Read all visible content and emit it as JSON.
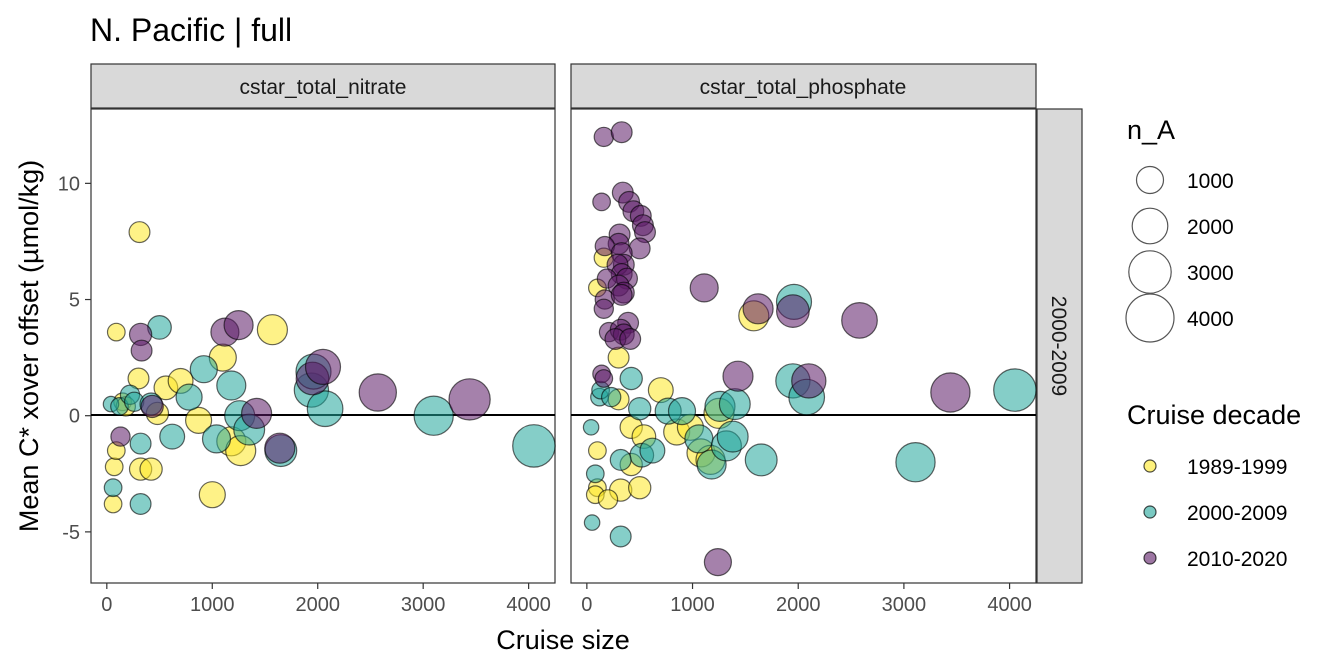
{
  "chart_data": {
    "type": "scatter",
    "title": "N. Pacific | full",
    "xlabel": "Cruise size",
    "ylabel": "Mean C* xover offset (µmol/kg)",
    "xlim": [
      -150,
      4250
    ],
    "ylim": [
      -7.2,
      13.2
    ],
    "x_ticks": [
      0,
      1000,
      2000,
      3000,
      4000
    ],
    "y_ticks": [
      -5,
      0,
      5,
      10
    ],
    "hline": 0,
    "grid": false,
    "row_strip": "2000-2009",
    "legend_position": "right",
    "size_legend": {
      "title": "n_A",
      "entries": [
        {
          "label": "1000",
          "value": 1000
        },
        {
          "label": "2000",
          "value": 2000
        },
        {
          "label": "3000",
          "value": 3000
        },
        {
          "label": "4000",
          "value": 4000
        }
      ]
    },
    "color_legend": {
      "title": "Cruise decade",
      "entries": [
        {
          "label": "1989-1999",
          "color": "#fde725"
        },
        {
          "label": "2000-2009",
          "color": "#21a59a"
        },
        {
          "label": "2010-2020",
          "color": "#5b1a66"
        }
      ]
    },
    "panels": [
      {
        "strip": "cstar_total_nitrate",
        "points": [
          {
            "x": 310,
            "y": 7.9,
            "n": 500,
            "decade": "1989-1999"
          },
          {
            "x": 90,
            "y": 3.6,
            "n": 300,
            "decade": "1989-1999"
          },
          {
            "x": 300,
            "y": 1.6,
            "n": 500,
            "decade": "1989-1999"
          },
          {
            "x": 150,
            "y": 0.6,
            "n": 300,
            "decade": "1989-1999"
          },
          {
            "x": 180,
            "y": 0.4,
            "n": 400,
            "decade": "1989-1999"
          },
          {
            "x": 480,
            "y": 0.1,
            "n": 600,
            "decade": "1989-1999"
          },
          {
            "x": 560,
            "y": 1.2,
            "n": 700,
            "decade": "1989-1999"
          },
          {
            "x": 700,
            "y": 1.5,
            "n": 800,
            "decade": "1989-1999"
          },
          {
            "x": 870,
            "y": -0.2,
            "n": 900,
            "decade": "1989-1999"
          },
          {
            "x": 1100,
            "y": 2.5,
            "n": 1000,
            "decade": "1989-1999"
          },
          {
            "x": 1180,
            "y": -1.1,
            "n": 1200,
            "decade": "1989-1999"
          },
          {
            "x": 1270,
            "y": -1.5,
            "n": 1300,
            "decade": "1989-1999"
          },
          {
            "x": 1570,
            "y": 3.7,
            "n": 1300,
            "decade": "1989-1999"
          },
          {
            "x": 1000,
            "y": -3.4,
            "n": 900,
            "decade": "1989-1999"
          },
          {
            "x": 320,
            "y": -2.3,
            "n": 600,
            "decade": "1989-1999"
          },
          {
            "x": 420,
            "y": -2.3,
            "n": 600,
            "decade": "1989-1999"
          },
          {
            "x": 70,
            "y": -2.2,
            "n": 300,
            "decade": "1989-1999"
          },
          {
            "x": 60,
            "y": -3.8,
            "n": 300,
            "decade": "1989-1999"
          },
          {
            "x": 90,
            "y": -1.5,
            "n": 300,
            "decade": "1989-1999"
          },
          {
            "x": 40,
            "y": 0.5,
            "n": 200,
            "decade": "2000-2009"
          },
          {
            "x": 120,
            "y": 0.4,
            "n": 300,
            "decade": "2000-2009"
          },
          {
            "x": 220,
            "y": 0.9,
            "n": 400,
            "decade": "2000-2009"
          },
          {
            "x": 260,
            "y": 0.6,
            "n": 400,
            "decade": "2000-2009"
          },
          {
            "x": 500,
            "y": 3.8,
            "n": 700,
            "decade": "2000-2009"
          },
          {
            "x": 620,
            "y": -0.9,
            "n": 800,
            "decade": "2000-2009"
          },
          {
            "x": 780,
            "y": 0.8,
            "n": 900,
            "decade": "2000-2009"
          },
          {
            "x": 920,
            "y": 2.0,
            "n": 1000,
            "decade": "2000-2009"
          },
          {
            "x": 1040,
            "y": -1.0,
            "n": 1100,
            "decade": "2000-2009"
          },
          {
            "x": 1180,
            "y": 1.3,
            "n": 1200,
            "decade": "2000-2009"
          },
          {
            "x": 1260,
            "y": 0.0,
            "n": 1300,
            "decade": "2000-2009"
          },
          {
            "x": 1350,
            "y": -0.6,
            "n": 1400,
            "decade": "2000-2009"
          },
          {
            "x": 1650,
            "y": -1.5,
            "n": 1500,
            "decade": "2000-2009"
          },
          {
            "x": 1940,
            "y": 1.1,
            "n": 1800,
            "decade": "2000-2009"
          },
          {
            "x": 1960,
            "y": 1.9,
            "n": 1900,
            "decade": "2000-2009"
          },
          {
            "x": 2070,
            "y": 0.3,
            "n": 2000,
            "decade": "2000-2009"
          },
          {
            "x": 3100,
            "y": 0.0,
            "n": 2500,
            "decade": "2000-2009"
          },
          {
            "x": 4050,
            "y": -1.3,
            "n": 3000,
            "decade": "2000-2009"
          },
          {
            "x": 320,
            "y": -1.2,
            "n": 500,
            "decade": "2000-2009"
          },
          {
            "x": 320,
            "y": -3.8,
            "n": 500,
            "decade": "2000-2009"
          },
          {
            "x": 60,
            "y": -3.1,
            "n": 300,
            "decade": "2000-2009"
          },
          {
            "x": 420,
            "y": 0.5,
            "n": 600,
            "decade": "2000-2009"
          },
          {
            "x": 320,
            "y": 3.5,
            "n": 600,
            "decade": "2010-2020"
          },
          {
            "x": 330,
            "y": 2.8,
            "n": 500,
            "decade": "2010-2020"
          },
          {
            "x": 430,
            "y": 0.4,
            "n": 600,
            "decade": "2010-2020"
          },
          {
            "x": 130,
            "y": -0.9,
            "n": 400,
            "decade": "2010-2020"
          },
          {
            "x": 1120,
            "y": 3.6,
            "n": 1100,
            "decade": "2010-2020"
          },
          {
            "x": 1250,
            "y": 3.9,
            "n": 1200,
            "decade": "2010-2020"
          },
          {
            "x": 1420,
            "y": 0.1,
            "n": 1300,
            "decade": "2010-2020"
          },
          {
            "x": 1640,
            "y": -1.4,
            "n": 1300,
            "decade": "2010-2020"
          },
          {
            "x": 1950,
            "y": 1.6,
            "n": 1600,
            "decade": "2010-2020"
          },
          {
            "x": 2050,
            "y": 2.1,
            "n": 1900,
            "decade": "2010-2020"
          },
          {
            "x": 2570,
            "y": 1.0,
            "n": 2200,
            "decade": "2010-2020"
          },
          {
            "x": 3440,
            "y": 0.7,
            "n": 2800,
            "decade": "2010-2020"
          }
        ]
      },
      {
        "strip": "cstar_total_phosphate",
        "points": [
          {
            "x": 160,
            "y": 6.8,
            "n": 400,
            "decade": "1989-1999"
          },
          {
            "x": 100,
            "y": 5.5,
            "n": 300,
            "decade": "1989-1999"
          },
          {
            "x": 300,
            "y": 2.5,
            "n": 500,
            "decade": "1989-1999"
          },
          {
            "x": 300,
            "y": 0.7,
            "n": 500,
            "decade": "1989-1999"
          },
          {
            "x": 420,
            "y": -0.5,
            "n": 600,
            "decade": "1989-1999"
          },
          {
            "x": 540,
            "y": -0.9,
            "n": 700,
            "decade": "1989-1999"
          },
          {
            "x": 700,
            "y": 1.1,
            "n": 800,
            "decade": "1989-1999"
          },
          {
            "x": 850,
            "y": -0.7,
            "n": 900,
            "decade": "1989-1999"
          },
          {
            "x": 980,
            "y": -0.5,
            "n": 900,
            "decade": "1989-1999"
          },
          {
            "x": 1080,
            "y": -1.6,
            "n": 1100,
            "decade": "1989-1999"
          },
          {
            "x": 1170,
            "y": -1.9,
            "n": 1200,
            "decade": "1989-1999"
          },
          {
            "x": 1250,
            "y": 0.1,
            "n": 1300,
            "decade": "1989-1999"
          },
          {
            "x": 1580,
            "y": 4.3,
            "n": 1300,
            "decade": "1989-1999"
          },
          {
            "x": 420,
            "y": -2.1,
            "n": 600,
            "decade": "1989-1999"
          },
          {
            "x": 320,
            "y": -3.2,
            "n": 600,
            "decade": "1989-1999"
          },
          {
            "x": 500,
            "y": -3.1,
            "n": 600,
            "decade": "1989-1999"
          },
          {
            "x": 100,
            "y": -1.5,
            "n": 300,
            "decade": "1989-1999"
          },
          {
            "x": 100,
            "y": -3.1,
            "n": 300,
            "decade": "1989-1999"
          },
          {
            "x": 80,
            "y": -3.4,
            "n": 300,
            "decade": "1989-1999"
          },
          {
            "x": 200,
            "y": -3.6,
            "n": 400,
            "decade": "1989-1999"
          },
          {
            "x": 40,
            "y": -0.5,
            "n": 200,
            "decade": "2000-2009"
          },
          {
            "x": 120,
            "y": 0.8,
            "n": 300,
            "decade": "2000-2009"
          },
          {
            "x": 130,
            "y": 1.1,
            "n": 300,
            "decade": "2000-2009"
          },
          {
            "x": 230,
            "y": 0.8,
            "n": 400,
            "decade": "2000-2009"
          },
          {
            "x": 420,
            "y": 1.6,
            "n": 600,
            "decade": "2000-2009"
          },
          {
            "x": 500,
            "y": 0.3,
            "n": 600,
            "decade": "2000-2009"
          },
          {
            "x": 520,
            "y": -1.7,
            "n": 700,
            "decade": "2000-2009"
          },
          {
            "x": 620,
            "y": -1.5,
            "n": 800,
            "decade": "2000-2009"
          },
          {
            "x": 770,
            "y": 0.2,
            "n": 900,
            "decade": "2000-2009"
          },
          {
            "x": 900,
            "y": 0.2,
            "n": 1000,
            "decade": "2000-2009"
          },
          {
            "x": 1060,
            "y": -1.0,
            "n": 1100,
            "decade": "2000-2009"
          },
          {
            "x": 1180,
            "y": -2.1,
            "n": 1200,
            "decade": "2000-2009"
          },
          {
            "x": 1260,
            "y": 0.4,
            "n": 1300,
            "decade": "2000-2009"
          },
          {
            "x": 1320,
            "y": -1.3,
            "n": 1300,
            "decade": "2000-2009"
          },
          {
            "x": 1380,
            "y": -0.9,
            "n": 1400,
            "decade": "2000-2009"
          },
          {
            "x": 1400,
            "y": 0.5,
            "n": 1400,
            "decade": "2000-2009"
          },
          {
            "x": 1650,
            "y": -1.9,
            "n": 1500,
            "decade": "2000-2009"
          },
          {
            "x": 1950,
            "y": 1.5,
            "n": 1800,
            "decade": "2000-2009"
          },
          {
            "x": 1960,
            "y": 4.9,
            "n": 1900,
            "decade": "2000-2009"
          },
          {
            "x": 2080,
            "y": 0.8,
            "n": 2000,
            "decade": "2000-2009"
          },
          {
            "x": 3110,
            "y": -2.0,
            "n": 2500,
            "decade": "2000-2009"
          },
          {
            "x": 4050,
            "y": 1.1,
            "n": 3000,
            "decade": "2000-2009"
          },
          {
            "x": 80,
            "y": -2.5,
            "n": 300,
            "decade": "2000-2009"
          },
          {
            "x": 50,
            "y": -4.6,
            "n": 200,
            "decade": "2000-2009"
          },
          {
            "x": 320,
            "y": -5.2,
            "n": 500,
            "decade": "2000-2009"
          },
          {
            "x": 320,
            "y": -1.9,
            "n": 500,
            "decade": "2000-2009"
          },
          {
            "x": 160,
            "y": 12.0,
            "n": 400,
            "decade": "2010-2020"
          },
          {
            "x": 330,
            "y": 12.2,
            "n": 500,
            "decade": "2010-2020"
          },
          {
            "x": 140,
            "y": 9.2,
            "n": 300,
            "decade": "2010-2020"
          },
          {
            "x": 340,
            "y": 9.6,
            "n": 500,
            "decade": "2010-2020"
          },
          {
            "x": 400,
            "y": 9.2,
            "n": 500,
            "decade": "2010-2020"
          },
          {
            "x": 440,
            "y": 8.8,
            "n": 500,
            "decade": "2010-2020"
          },
          {
            "x": 510,
            "y": 8.6,
            "n": 500,
            "decade": "2010-2020"
          },
          {
            "x": 530,
            "y": 8.2,
            "n": 500,
            "decade": "2010-2020"
          },
          {
            "x": 550,
            "y": 7.9,
            "n": 500,
            "decade": "2010-2020"
          },
          {
            "x": 310,
            "y": 7.8,
            "n": 500,
            "decade": "2010-2020"
          },
          {
            "x": 300,
            "y": 7.4,
            "n": 500,
            "decade": "2010-2020"
          },
          {
            "x": 170,
            "y": 7.3,
            "n": 400,
            "decade": "2010-2020"
          },
          {
            "x": 500,
            "y": 7.2,
            "n": 500,
            "decade": "2010-2020"
          },
          {
            "x": 330,
            "y": 7.0,
            "n": 500,
            "decade": "2010-2020"
          },
          {
            "x": 350,
            "y": 6.5,
            "n": 500,
            "decade": "2010-2020"
          },
          {
            "x": 290,
            "y": 6.5,
            "n": 500,
            "decade": "2010-2020"
          },
          {
            "x": 330,
            "y": 6.1,
            "n": 500,
            "decade": "2010-2020"
          },
          {
            "x": 380,
            "y": 5.9,
            "n": 500,
            "decade": "2010-2020"
          },
          {
            "x": 190,
            "y": 5.9,
            "n": 400,
            "decade": "2010-2020"
          },
          {
            "x": 300,
            "y": 5.6,
            "n": 500,
            "decade": "2010-2020"
          },
          {
            "x": 170,
            "y": 5.0,
            "n": 400,
            "decade": "2010-2020"
          },
          {
            "x": 350,
            "y": 5.3,
            "n": 500,
            "decade": "2010-2020"
          },
          {
            "x": 330,
            "y": 5.2,
            "n": 500,
            "decade": "2010-2020"
          },
          {
            "x": 160,
            "y": 4.6,
            "n": 400,
            "decade": "2010-2020"
          },
          {
            "x": 390,
            "y": 4.0,
            "n": 500,
            "decade": "2010-2020"
          },
          {
            "x": 210,
            "y": 3.6,
            "n": 400,
            "decade": "2010-2020"
          },
          {
            "x": 320,
            "y": 3.7,
            "n": 500,
            "decade": "2010-2020"
          },
          {
            "x": 350,
            "y": 3.5,
            "n": 500,
            "decade": "2010-2020"
          },
          {
            "x": 270,
            "y": 3.3,
            "n": 500,
            "decade": "2010-2020"
          },
          {
            "x": 410,
            "y": 3.3,
            "n": 500,
            "decade": "2010-2020"
          },
          {
            "x": 140,
            "y": 1.8,
            "n": 300,
            "decade": "2010-2020"
          },
          {
            "x": 160,
            "y": 1.6,
            "n": 300,
            "decade": "2010-2020"
          },
          {
            "x": 1110,
            "y": 5.5,
            "n": 1100,
            "decade": "2010-2020"
          },
          {
            "x": 1620,
            "y": 4.6,
            "n": 1300,
            "decade": "2010-2020"
          },
          {
            "x": 1950,
            "y": 4.5,
            "n": 1600,
            "decade": "2010-2020"
          },
          {
            "x": 2580,
            "y": 4.1,
            "n": 2000,
            "decade": "2010-2020"
          },
          {
            "x": 1430,
            "y": 1.7,
            "n": 1300,
            "decade": "2010-2020"
          },
          {
            "x": 2100,
            "y": 1.5,
            "n": 1800,
            "decade": "2010-2020"
          },
          {
            "x": 3440,
            "y": 1.0,
            "n": 2500,
            "decade": "2010-2020"
          },
          {
            "x": 1240,
            "y": -6.3,
            "n": 1000,
            "decade": "2010-2020"
          }
        ]
      }
    ]
  }
}
